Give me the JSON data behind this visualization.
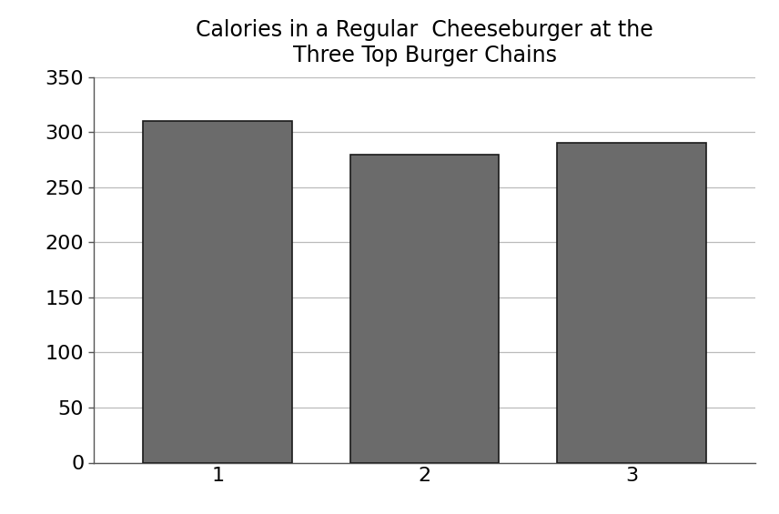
{
  "title_line1": "Calories in a Regular  Cheeseburger at the",
  "title_line2": "Three Top Burger Chains",
  "categories": [
    1,
    2,
    3
  ],
  "values": [
    310,
    280,
    290
  ],
  "bar_color": "#6b6b6b",
  "bar_edge_color": "#1a1a1a",
  "ylim": [
    0,
    350
  ],
  "yticks": [
    0,
    50,
    100,
    150,
    200,
    250,
    300,
    350
  ],
  "xticks": [
    1,
    2,
    3
  ],
  "background_color": "#ffffff",
  "grid_color": "#bbbbbb",
  "title_fontsize": 17,
  "tick_fontsize": 16,
  "bar_width": 0.72,
  "bar_edge_width": 1.2
}
